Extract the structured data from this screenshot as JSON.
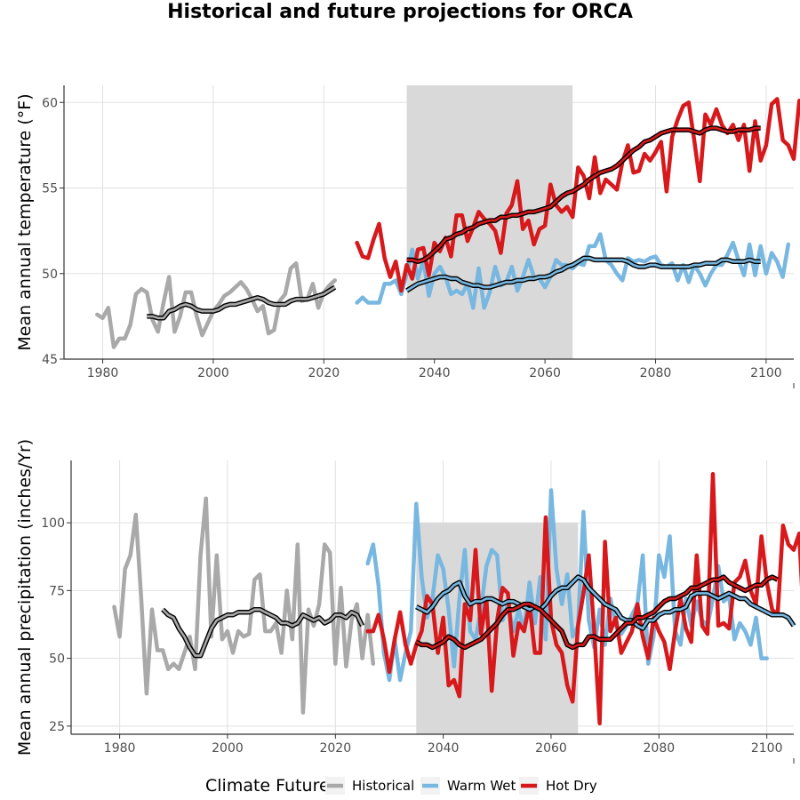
{
  "title": "Historical and future projections for ORCA",
  "colors": {
    "historical": "#a9a9a9",
    "warm_wet": "#78b7e0",
    "hot_dry": "#d7191c",
    "smooth_outline": "#000000",
    "shade": "#d9d9d9",
    "grid": "#e0e0e0"
  },
  "legend": {
    "title": "Climate Future",
    "items": [
      {
        "label": "Historical",
        "color": "#a9a9a9"
      },
      {
        "label": "Warm Wet",
        "color": "#78b7e0"
      },
      {
        "label": "Hot Dry",
        "color": "#d7191c"
      }
    ]
  },
  "chart_data": [
    {
      "type": "line",
      "ylabel": "Mean annual temperature (°F)",
      "xlim": [
        1973,
        2105
      ],
      "ylim": [
        45,
        61
      ],
      "x_ticks": [
        1980,
        2000,
        2020,
        2040,
        2060,
        2080,
        2100
      ],
      "y_ticks": [
        45,
        50,
        55,
        60
      ],
      "shaded_period": [
        2035,
        2065
      ],
      "grid": true,
      "series": [
        {
          "name": "Historical",
          "color": "#a9a9a9",
          "start": 1979,
          "values": [
            47.6,
            47.4,
            48.0,
            45.7,
            46.2,
            46.2,
            47.0,
            48.8,
            49.1,
            48.9,
            47.3,
            46.6,
            48.3,
            49.8,
            46.6,
            47.5,
            48.9,
            48.9,
            47.5,
            46.4,
            47.1,
            47.8,
            48.2,
            48.7,
            48.9,
            49.2,
            49.5,
            49.1,
            48.5,
            47.8,
            48.1,
            46.5,
            46.7,
            48.4,
            48.8,
            50.3,
            50.6,
            48.4,
            48.5,
            49.4,
            48.0,
            48.9,
            49.3,
            49.6
          ]
        },
        {
          "name": "Warm Wet",
          "color": "#78b7e0",
          "start": 2026,
          "values": [
            48.3,
            48.6,
            48.3,
            48.3,
            48.3,
            49.4,
            49.4,
            49.6,
            48.8,
            50.0,
            51.4,
            49.7,
            50.8,
            48.7,
            50.0,
            50.4,
            49.8,
            48.8,
            49.0,
            48.8,
            49.4,
            48.0,
            50.3,
            48.0,
            48.9,
            50.4,
            49.3,
            49.5,
            50.4,
            49.0,
            49.8,
            50.8,
            49.8,
            49.7,
            49.2,
            49.8,
            50.8,
            50.5,
            50.5,
            50.3,
            50.6,
            50.5,
            51.6,
            51.6,
            52.3,
            50.8,
            50.5,
            50.0,
            49.6,
            50.9,
            50.7,
            50.8,
            50.7,
            50.9,
            51.0,
            50.5,
            50.4,
            50.6,
            49.6,
            50.5,
            49.5,
            50.5,
            50.0,
            49.3,
            50.0,
            50.5,
            50.5,
            51.1,
            51.8,
            50.8,
            49.9,
            51.7,
            49.9,
            51.6,
            50.0,
            51.2,
            50.7,
            49.8,
            51.7
          ]
        },
        {
          "name": "Hot Dry",
          "color": "#d7191c",
          "start": 2026,
          "values": [
            51.8,
            51.0,
            50.9,
            52.0,
            52.9,
            50.9,
            49.8,
            50.7,
            49.0,
            50.5,
            49.7,
            51.4,
            51.5,
            49.9,
            51.8,
            51.3,
            52.1,
            51.0,
            53.4,
            53.4,
            51.9,
            52.7,
            53.6,
            53.2,
            52.9,
            52.5,
            51.2,
            53.5,
            54.0,
            55.4,
            52.6,
            53.1,
            51.7,
            52.6,
            52.8,
            55.2,
            54.0,
            53.6,
            53.9,
            53.3,
            56.2,
            55.7,
            54.4,
            56.8,
            54.7,
            55.5,
            55.2,
            54.9,
            56.5,
            57.5,
            55.9,
            56.0,
            57.0,
            56.6,
            57.1,
            57.7,
            54.8,
            58.0,
            59.0,
            59.8,
            60.0,
            57.8,
            55.4,
            59.3,
            58.7,
            59.6,
            58.7,
            58.2,
            58.7,
            57.8,
            58.7,
            56.0,
            58.9,
            56.6,
            57.5,
            59.9,
            60.2,
            57.8,
            57.5,
            56.7,
            60.1,
            59.5
          ]
        },
        {
          "name": "Historical smoothed",
          "color": "#a9a9a9",
          "smooth": true,
          "start": 1988,
          "values": [
            47.5,
            47.5,
            47.4,
            47.4,
            47.8,
            47.9,
            48.1,
            48.2,
            48.1,
            47.9,
            47.8,
            47.8,
            47.8,
            47.9,
            48.1,
            48.2,
            48.2,
            48.3,
            48.4,
            48.5,
            48.6,
            48.5,
            48.3,
            48.2,
            48.2,
            48.2,
            48.4,
            48.5,
            48.5,
            48.5,
            48.6,
            48.7,
            48.8,
            49.0,
            49.2
          ]
        },
        {
          "name": "Warm Wet smoothed",
          "color": "#78b7e0",
          "smooth": true,
          "start": 2035,
          "values": [
            49.0,
            49.2,
            49.4,
            49.5,
            49.6,
            49.7,
            49.8,
            49.8,
            49.7,
            49.7,
            49.5,
            49.4,
            49.3,
            49.3,
            49.2,
            49.2,
            49.3,
            49.4,
            49.5,
            49.5,
            49.6,
            49.6,
            49.7,
            49.7,
            49.8,
            49.8,
            49.9,
            50.1,
            50.2,
            50.4,
            50.5,
            50.7,
            50.9,
            50.9,
            50.8,
            50.8,
            50.8,
            50.8,
            50.8,
            50.8,
            50.7,
            50.5,
            50.4,
            50.4,
            50.5,
            50.5,
            50.4,
            50.4,
            50.4,
            50.4,
            50.4,
            50.4,
            50.5,
            50.5,
            50.6,
            50.6,
            50.6,
            50.8,
            50.8,
            50.7,
            50.7,
            50.7,
            50.8,
            50.7,
            50.7
          ]
        },
        {
          "name": "Hot Dry smoothed",
          "color": "#d7191c",
          "smooth": true,
          "start": 2035,
          "values": [
            50.8,
            50.8,
            50.7,
            50.8,
            51.0,
            51.3,
            51.6,
            52.0,
            52.1,
            52.3,
            52.4,
            52.6,
            52.7,
            52.9,
            53.0,
            53.1,
            53.1,
            53.3,
            53.3,
            53.4,
            53.4,
            53.5,
            53.6,
            53.6,
            53.7,
            53.8,
            53.9,
            54.2,
            54.5,
            54.7,
            54.8,
            55.0,
            55.2,
            55.5,
            55.7,
            55.9,
            56.0,
            56.1,
            56.3,
            56.6,
            56.9,
            57.2,
            57.4,
            57.7,
            57.8,
            58.0,
            58.2,
            58.3,
            58.4,
            58.4,
            58.4,
            58.4,
            58.3,
            58.2,
            58.4,
            58.5,
            58.5,
            58.4,
            58.3,
            58.3,
            58.4,
            58.4,
            58.4,
            58.5,
            58.5
          ]
        }
      ]
    },
    {
      "type": "line",
      "ylabel": "Mean annual precipitation (inches/Yr)",
      "xlim": [
        1971,
        2105
      ],
      "ylim": [
        22,
        123
      ],
      "x_ticks": [
        1980,
        2000,
        2020,
        2040,
        2060,
        2080,
        2100
      ],
      "y_ticks": [
        25,
        50,
        75,
        100
      ],
      "shaded_period": [
        2035,
        2065
      ],
      "grid": true,
      "series": [
        {
          "name": "Historical",
          "color": "#a9a9a9",
          "start": 1979,
          "values": [
            69,
            58,
            83,
            88,
            103,
            72,
            37,
            68,
            53,
            53,
            46,
            48,
            46,
            52,
            58,
            46,
            88,
            109,
            58,
            88,
            57,
            60,
            52,
            60,
            58,
            59,
            79,
            81,
            60,
            60,
            63,
            52,
            75,
            57,
            92,
            30,
            68,
            62,
            70,
            92,
            89,
            48,
            76,
            47,
            64,
            70,
            50,
            66,
            48
          ]
        },
        {
          "name": "Warm Wet",
          "color": "#78b7e0",
          "start": 2026,
          "values": [
            85,
            92,
            77,
            52,
            42,
            57,
            42,
            52,
            60,
            107,
            80,
            65,
            72,
            88,
            83,
            68,
            47,
            72,
            90,
            60,
            57,
            68,
            84,
            90,
            88,
            64,
            70,
            60,
            68,
            60,
            78,
            63,
            80,
            57,
            112,
            83,
            70,
            81,
            58,
            62,
            104,
            64,
            54,
            68,
            55,
            72,
            62,
            59,
            62,
            66,
            70,
            88,
            48,
            58,
            88,
            80,
            95,
            60,
            55,
            72,
            62,
            71,
            64,
            62,
            72,
            84,
            71,
            73,
            57,
            63,
            60,
            55,
            65,
            50,
            50
          ]
        },
        {
          "name": "Hot Dry",
          "color": "#d7191c",
          "start": 2026,
          "values": [
            60,
            60,
            66,
            57,
            45,
            57,
            67,
            55,
            48,
            55,
            60,
            73,
            70,
            52,
            65,
            40,
            42,
            36,
            70,
            64,
            90,
            59,
            72,
            38,
            64,
            76,
            74,
            51,
            63,
            60,
            70,
            52,
            52,
            102,
            64,
            55,
            52,
            40,
            34,
            62,
            74,
            88,
            60,
            26,
            93,
            60,
            65,
            52,
            56,
            60,
            70,
            58,
            50,
            65,
            60,
            56,
            46,
            60,
            72,
            61,
            56,
            88,
            62,
            59,
            118,
            62,
            63,
            61,
            78,
            80,
            86,
            75,
            70,
            95,
            78,
            68,
            66,
            99,
            92,
            90,
            96,
            58
          ]
        },
        {
          "name": "Historical smoothed",
          "color": "#a9a9a9",
          "smooth": true,
          "start": 1988,
          "values": [
            68,
            66,
            65,
            61,
            58,
            54,
            51,
            51,
            56,
            61,
            64,
            65,
            66,
            66,
            67,
            67,
            67,
            68,
            68,
            67,
            66,
            65,
            63,
            63,
            62,
            63,
            66,
            65,
            64,
            65,
            63,
            64,
            66,
            66,
            65,
            67,
            66,
            62
          ]
        },
        {
          "name": "Warm Wet smoothed",
          "color": "#78b7e0",
          "smooth": true,
          "start": 2035,
          "values": [
            69,
            68,
            67,
            69,
            72,
            74,
            75,
            77,
            78,
            73,
            70,
            71,
            71,
            72,
            72,
            71,
            70,
            71,
            71,
            70,
            69,
            68,
            69,
            68,
            70,
            73,
            75,
            76,
            76,
            78,
            80,
            79,
            76,
            74,
            72,
            70,
            69,
            68,
            65,
            64,
            64,
            62,
            61,
            64,
            64,
            66,
            67,
            67,
            68,
            68,
            69,
            73,
            74,
            74,
            74,
            73,
            72,
            73,
            74,
            73,
            72,
            72,
            70,
            69,
            68,
            67,
            66,
            66,
            66,
            65,
            62
          ]
        },
        {
          "name": "Hot Dry smoothed",
          "color": "#d7191c",
          "smooth": true,
          "start": 2035,
          "values": [
            56,
            55,
            55,
            54,
            55,
            56,
            58,
            57,
            55,
            54,
            55,
            56,
            57,
            59,
            61,
            63,
            66,
            68,
            68,
            69,
            70,
            70,
            69,
            68,
            66,
            64,
            62,
            60,
            55,
            54,
            55,
            55,
            58,
            58,
            57,
            57,
            57,
            59,
            61,
            63,
            63,
            65,
            65,
            66,
            67,
            69,
            71,
            72,
            72,
            73,
            74,
            76,
            76,
            77,
            78,
            79,
            79,
            80,
            78,
            77,
            76,
            75,
            76,
            77,
            77,
            79,
            80,
            79
          ]
        }
      ]
    }
  ]
}
